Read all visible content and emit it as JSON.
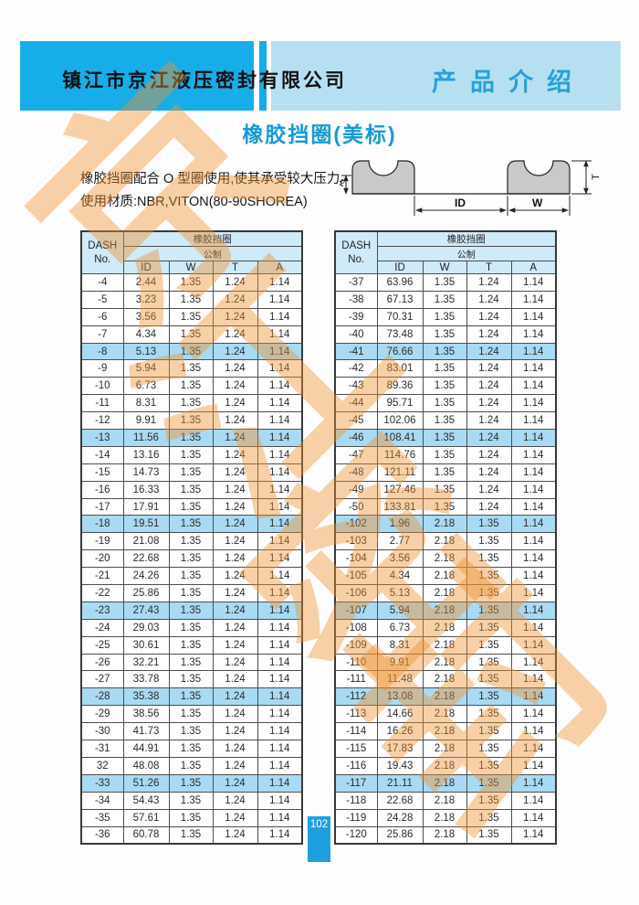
{
  "header": {
    "company": "镇江市京江液压密封有限公司",
    "section": "产品介绍"
  },
  "title": "橡胶挡圈(美标)",
  "intro": {
    "line1": "橡胶挡圈配合 O 型圈使用,使其承受较大压力。",
    "line2": "使用材质:NBR,VITON(80-90SHOREA)"
  },
  "diagram": {
    "labels": {
      "a": "A",
      "t": "T",
      "id": "ID",
      "w": "W"
    }
  },
  "tables": {
    "col1_header_line1": "DASH",
    "col1_header_line2": "No.",
    "group_header": "橡胶挡圈",
    "unit_header": "公制",
    "columns": [
      "ID",
      "W",
      "T",
      "A"
    ],
    "highlight_rows": [
      4,
      9,
      14,
      19,
      24,
      29
    ],
    "left_rows": [
      [
        "-4",
        "2.44",
        "1.35",
        "1.24",
        "1.14"
      ],
      [
        "-5",
        "3.23",
        "1.35",
        "1.24",
        "1.14"
      ],
      [
        "-6",
        "3.56",
        "1.35",
        "1.24",
        "1.14"
      ],
      [
        "-7",
        "4.34",
        "1.35",
        "1.24",
        "1.14"
      ],
      [
        "-8",
        "5.13",
        "1.35",
        "1.24",
        "1.14"
      ],
      [
        "-9",
        "5.94",
        "1.35",
        "1.24",
        "1.14"
      ],
      [
        "-10",
        "6.73",
        "1.35",
        "1.24",
        "1.14"
      ],
      [
        "-11",
        "8.31",
        "1.35",
        "1.24",
        "1.14"
      ],
      [
        "-12",
        "9.91",
        "1.35",
        "1.24",
        "1.14"
      ],
      [
        "-13",
        "11.56",
        "1.35",
        "1.24",
        "1.14"
      ],
      [
        "-14",
        "13.16",
        "1.35",
        "1.24",
        "1.14"
      ],
      [
        "-15",
        "14.73",
        "1.35",
        "1.24",
        "1.14"
      ],
      [
        "-16",
        "16.33",
        "1.35",
        "1.24",
        "1.14"
      ],
      [
        "-17",
        "17.91",
        "1.35",
        "1.24",
        "1.14"
      ],
      [
        "-18",
        "19.51",
        "1.35",
        "1.24",
        "1.14"
      ],
      [
        "-19",
        "21.08",
        "1.35",
        "1.24",
        "1.14"
      ],
      [
        "-20",
        "22.68",
        "1.35",
        "1.24",
        "1.14"
      ],
      [
        "-21",
        "24.26",
        "1.35",
        "1.24",
        "1.14"
      ],
      [
        "-22",
        "25.86",
        "1.35",
        "1.24",
        "1.14"
      ],
      [
        "-23",
        "27.43",
        "1.35",
        "1.24",
        "1.14"
      ],
      [
        "-24",
        "29.03",
        "1.35",
        "1.24",
        "1.14"
      ],
      [
        "-25",
        "30.61",
        "1.35",
        "1.24",
        "1.14"
      ],
      [
        "-26",
        "32.21",
        "1.35",
        "1.24",
        "1.14"
      ],
      [
        "-27",
        "33.78",
        "1.35",
        "1.24",
        "1.14"
      ],
      [
        "-28",
        "35.38",
        "1.35",
        "1.24",
        "1.14"
      ],
      [
        "-29",
        "38.56",
        "1.35",
        "1.24",
        "1.14"
      ],
      [
        "-30",
        "41.73",
        "1.35",
        "1.24",
        "1.14"
      ],
      [
        "-31",
        "44.91",
        "1.35",
        "1.24",
        "1.14"
      ],
      [
        "32",
        "48.08",
        "1.35",
        "1.24",
        "1.14"
      ],
      [
        "-33",
        "51.26",
        "1.35",
        "1.24",
        "1.14"
      ],
      [
        "-34",
        "54.43",
        "1.35",
        "1.24",
        "1.14"
      ],
      [
        "-35",
        "57.61",
        "1.35",
        "1.24",
        "1.14"
      ],
      [
        "-36",
        "60.78",
        "1.35",
        "1.24",
        "1.14"
      ]
    ],
    "right_rows": [
      [
        "-37",
        "63.96",
        "1.35",
        "1.24",
        "1.14"
      ],
      [
        "-38",
        "67.13",
        "1.35",
        "1.24",
        "1.14"
      ],
      [
        "-39",
        "70.31",
        "1.35",
        "1.24",
        "1.14"
      ],
      [
        "-40",
        "73.48",
        "1.35",
        "1.24",
        "1.14"
      ],
      [
        "-41",
        "76.66",
        "1.35",
        "1.24",
        "1.14"
      ],
      [
        "-42",
        "83.01",
        "1.35",
        "1.24",
        "1.14"
      ],
      [
        "-43",
        "89.36",
        "1.35",
        "1.24",
        "1.14"
      ],
      [
        "-44",
        "95.71",
        "1.35",
        "1.24",
        "1.14"
      ],
      [
        "-45",
        "102.06",
        "1.35",
        "1.24",
        "1.14"
      ],
      [
        "-46",
        "108.41",
        "1.35",
        "1.24",
        "1.14"
      ],
      [
        "-47",
        "114.76",
        "1.35",
        "1.24",
        "1.14"
      ],
      [
        "-48",
        "121.11",
        "1.35",
        "1.24",
        "1.14"
      ],
      [
        "-49",
        "127.46",
        "1.35",
        "1.24",
        "1.14"
      ],
      [
        "-50",
        "133.81",
        "1.35",
        "1.24",
        "1.14"
      ],
      [
        "-102",
        "1.96",
        "2.18",
        "1.35",
        "1.14"
      ],
      [
        "-103",
        "2.77",
        "2.18",
        "1.35",
        "1.14"
      ],
      [
        "-104",
        "3.56",
        "2.18",
        "1.35",
        "1.14"
      ],
      [
        "-105",
        "4.34",
        "2.18",
        "1.35",
        "1.14"
      ],
      [
        "-106",
        "5.13",
        "2.18",
        "1.35",
        "1.14"
      ],
      [
        "-107",
        "5.94",
        "2.18",
        "1.35",
        "1.14"
      ],
      [
        "-108",
        "6.73",
        "2.18",
        "1.35",
        "1.14"
      ],
      [
        "-109",
        "8.31",
        "2.18",
        "1.35",
        "1.14"
      ],
      [
        "-110",
        "9.91",
        "2.18",
        "1.35",
        "1.14"
      ],
      [
        "-111",
        "11.48",
        "2.18",
        "1.35",
        "1.14"
      ],
      [
        "-112",
        "13.08",
        "2.18",
        "1.35",
        "1.14"
      ],
      [
        "-113",
        "14.66",
        "2.18",
        "1.35",
        "1.14"
      ],
      [
        "-114",
        "16.26",
        "2.18",
        "1.35",
        "1.14"
      ],
      [
        "-115",
        "17.83",
        "2.18",
        "1.35",
        "1.14"
      ],
      [
        "-116",
        "19.43",
        "2.18",
        "1.35",
        "1.14"
      ],
      [
        "-117",
        "21.11",
        "2.18",
        "1.35",
        "1.14"
      ],
      [
        "-118",
        "22.68",
        "2.18",
        "1.35",
        "1.14"
      ],
      [
        "-119",
        "24.28",
        "2.18",
        "1.35",
        "1.14"
      ],
      [
        "-120",
        "25.86",
        "2.18",
        "1.35",
        "1.14"
      ]
    ]
  },
  "page_number": "102",
  "watermark": {
    "chars": [
      "京",
      "江",
      "密",
      "封"
    ]
  },
  "colors": {
    "header_dark_blue": "#17ade9",
    "header_light_blue": "#b6e0f2",
    "section_text_blue": "#28a0d8",
    "title_blue": "#169ad6",
    "table_header_bg": "#cfeaf8",
    "highlight_row_bg": "#a9daf3",
    "page_number_bg": "#1e9fe0",
    "watermark_orange": "#ee9130"
  }
}
